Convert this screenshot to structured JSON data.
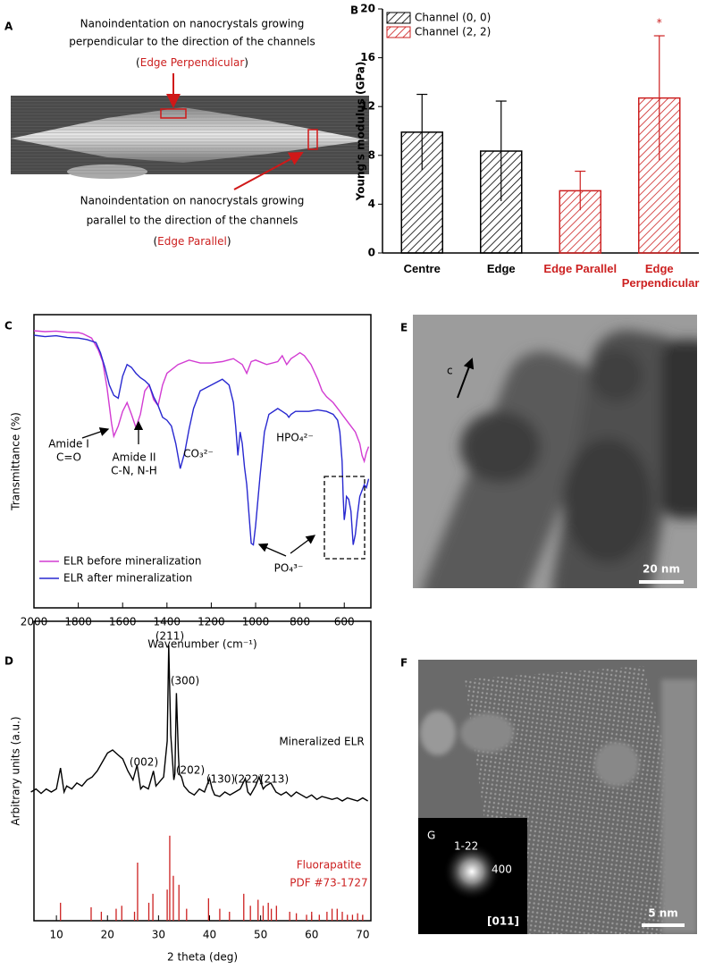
{
  "panels": {
    "A": {
      "letter": "A",
      "top_caption": [
        "Nanoindentation on nanocrystals growing",
        "perpendicular to the direction of the channels"
      ],
      "top_label": {
        "open": "(",
        "text": "Edge Perpendicular",
        "close": ")"
      },
      "bottom_caption": [
        "Nanoindentation on nanocrystals growing",
        "parallel to the direction of the channels"
      ],
      "bottom_label": {
        "open": "(",
        "text": "Edge Parallel",
        "close": ")"
      }
    },
    "E": {
      "letter": "E",
      "axis_label": "c",
      "scale_bar": "20 nm"
    },
    "F": {
      "letter": "F",
      "scale_bar": "5 nm"
    },
    "G": {
      "letter": "G",
      "spot_labels": [
        "1-22",
        "400"
      ],
      "zone_axis": "[011]"
    }
  },
  "chart_data": [
    {
      "type": "bar",
      "letter": "B",
      "ylabel": "Young's modulus (GPa)",
      "categories": [
        "Centre",
        "Edge",
        "Edge Parallel",
        "Edge Perpendicular"
      ],
      "category_colors": [
        "#000000",
        "#000000",
        "#cc2020",
        "#cc2020"
      ],
      "series": [
        {
          "name": "Channel (0, 0)",
          "color": "#000000",
          "values": [
            9.9,
            8.35,
            null,
            null
          ],
          "errors": [
            3.1,
            4.1,
            null,
            null
          ]
        },
        {
          "name": "Channel (2, 2)",
          "color": "#cc2020",
          "values": [
            null,
            null,
            5.1,
            12.7
          ],
          "errors": [
            null,
            null,
            1.6,
            5.1
          ]
        }
      ],
      "ylim": [
        0,
        20
      ],
      "yticks": [
        0,
        4,
        8,
        12,
        16,
        20
      ],
      "hatch": true,
      "legend": "top-left",
      "annotations": [
        {
          "text": "*",
          "category": "Edge Perpendicular",
          "color": "#cc2020"
        }
      ]
    },
    {
      "type": "line",
      "letter": "C",
      "xlabel": "Wavenumber (cm⁻¹)",
      "ylabel": "Transmittance (%)",
      "xlim": [
        2000,
        480
      ],
      "xticks": [
        2000,
        1800,
        1600,
        1400,
        1200,
        1000,
        800,
        600
      ],
      "ylim": [
        0,
        100
      ],
      "legend": "bottom-left",
      "series": [
        {
          "name": "ELR before mineralization",
          "color": "#d23cd2",
          "x": [
            2000,
            1950,
            1900,
            1850,
            1800,
            1780,
            1740,
            1710,
            1690,
            1670,
            1650,
            1640,
            1620,
            1600,
            1580,
            1560,
            1540,
            1520,
            1500,
            1480,
            1460,
            1440,
            1420,
            1400,
            1350,
            1300,
            1250,
            1200,
            1150,
            1100,
            1060,
            1040,
            1020,
            1000,
            950,
            900,
            880,
            860,
            840,
            820,
            800,
            780,
            750,
            720,
            700,
            680,
            650,
            620,
            600,
            580,
            550,
            530,
            520,
            510,
            500,
            490
          ],
          "values": [
            94.5,
            94.2,
            94.4,
            94,
            93.9,
            93.5,
            92,
            88,
            84,
            75,
            63,
            58.5,
            62,
            67,
            70,
            66,
            61.5,
            66,
            74,
            76,
            71,
            69,
            76,
            80,
            83,
            84.5,
            83.5,
            83.5,
            84,
            85,
            83,
            80,
            84,
            84.5,
            83,
            84,
            86,
            83,
            85,
            86,
            87,
            86,
            83,
            78,
            74,
            72,
            70,
            67,
            65,
            63,
            60,
            56,
            52,
            50,
            53,
            55
          ]
        },
        {
          "name": "ELR after mineralization",
          "color": "#2828d0",
          "x": [
            2000,
            1950,
            1900,
            1850,
            1800,
            1760,
            1720,
            1700,
            1680,
            1660,
            1640,
            1620,
            1600,
            1580,
            1560,
            1540,
            1520,
            1500,
            1480,
            1460,
            1440,
            1420,
            1400,
            1380,
            1360,
            1340,
            1320,
            1300,
            1280,
            1250,
            1200,
            1150,
            1120,
            1100,
            1090,
            1080,
            1070,
            1060,
            1050,
            1040,
            1030,
            1020,
            1010,
            1000,
            980,
            960,
            940,
            900,
            880,
            860,
            850,
            840,
            820,
            800,
            760,
            720,
            680,
            650,
            630,
            620,
            610,
            605,
            600,
            595,
            590,
            580,
            570,
            560,
            550,
            540,
            530,
            520,
            510,
            500,
            490
          ],
          "values": [
            93,
            92.5,
            92.8,
            92.2,
            92,
            91.5,
            90.5,
            87,
            82,
            76,
            72.5,
            71.5,
            79,
            83,
            82,
            80,
            78.5,
            77.5,
            76,
            72,
            69,
            65,
            64,
            62,
            56,
            47.5,
            53,
            61,
            68,
            74,
            76,
            78,
            76,
            70,
            62,
            52,
            60,
            56,
            48,
            42,
            32,
            22,
            21.5,
            28,
            45,
            60,
            66,
            68,
            67,
            66,
            65,
            66,
            67,
            67,
            67,
            67.5,
            67,
            66,
            64,
            60,
            50,
            38,
            30,
            33,
            38,
            37,
            33,
            21.5,
            25,
            32,
            38,
            40,
            42,
            41,
            44
          ]
        }
      ],
      "annotations": [
        "Amide I",
        "C=O",
        "Amide II",
        "C-N, N-H",
        "CO₃²⁻",
        "HPO₄²⁻",
        "PO₄³⁻"
      ]
    },
    {
      "type": "line",
      "letter": "D",
      "xlabel": "2 theta (deg)",
      "ylabel": "Arbitrary units (a.u.)",
      "xlim": [
        5.6,
        71.6
      ],
      "xticks": [
        10,
        20,
        30,
        40,
        50,
        60,
        70
      ],
      "ylim": [
        0,
        100
      ],
      "series": [
        {
          "name": "Mineralized ELR",
          "color": "#000000",
          "mode": "line",
          "x": [
            5,
            6,
            7,
            8,
            9,
            10,
            10.8,
            11.5,
            12,
            13,
            14,
            15,
            16,
            17,
            18,
            19,
            20,
            21,
            22,
            23,
            24,
            25,
            25.8,
            26.5,
            27,
            28,
            29,
            29.5,
            30,
            31,
            31.7,
            32,
            32.4,
            33,
            33.2,
            33.5,
            33.9,
            34.1,
            34.5,
            35,
            36,
            37,
            38,
            39,
            40,
            40.5,
            41,
            42,
            43,
            44,
            45,
            46,
            47,
            47.5,
            48,
            49,
            49.7,
            50.5,
            51,
            52,
            53,
            54,
            55,
            56,
            57,
            58,
            59,
            60,
            61,
            62,
            63,
            64,
            65,
            66,
            67,
            68,
            69,
            70,
            71
          ],
          "values": [
            43,
            44,
            42.5,
            44,
            43,
            44,
            51,
            43,
            45,
            44,
            46,
            45,
            47,
            48,
            50,
            53,
            56,
            57,
            55.5,
            54,
            50,
            47,
            52,
            44,
            45,
            44,
            50,
            45,
            46,
            48,
            60,
            92,
            62,
            47,
            49,
            76,
            55,
            49,
            48,
            45,
            43,
            42,
            44,
            43,
            47.5,
            44,
            42,
            41.5,
            43,
            42,
            43,
            44,
            47.5,
            43,
            42,
            45,
            48,
            44,
            45,
            46,
            43,
            42,
            43,
            41.5,
            43,
            42,
            41,
            42,
            40.5,
            41.5,
            41,
            40.5,
            41,
            40,
            41,
            40.5,
            40,
            41,
            40
          ]
        },
        {
          "name": "Fluorapatite",
          "subname": "PDF #73-1727",
          "color": "#cc2020",
          "mode": "stem",
          "x": [
            10.8,
            16.8,
            18.8,
            21.7,
            22.8,
            25.3,
            25.9,
            28.1,
            28.9,
            31.7,
            32.2,
            32.9,
            34.0,
            35.5,
            39.8,
            42.0,
            43.9,
            46.7,
            48.0,
            49.5,
            50.5,
            51.5,
            52.1,
            53.1,
            55.7,
            57.0,
            59.0,
            60.0,
            61.5,
            63.0,
            64.0,
            65.0,
            66.0,
            67.0,
            68.0,
            69.0,
            70.0
          ],
          "values": [
            6,
            4.5,
            3,
            4,
            5,
            3,
            19.4,
            6,
            9,
            10.4,
            28.4,
            15,
            12,
            4,
            7.5,
            4,
            3,
            9,
            5,
            7,
            5,
            6,
            4,
            5,
            3,
            2.5,
            2,
            3,
            2,
            3,
            4,
            4,
            3,
            2,
            2,
            2.5,
            2
          ]
        }
      ],
      "annotations": [
        "(211)",
        "(300)",
        "(002)",
        "(202)",
        "(130)",
        "(222)",
        "(213)"
      ]
    }
  ]
}
